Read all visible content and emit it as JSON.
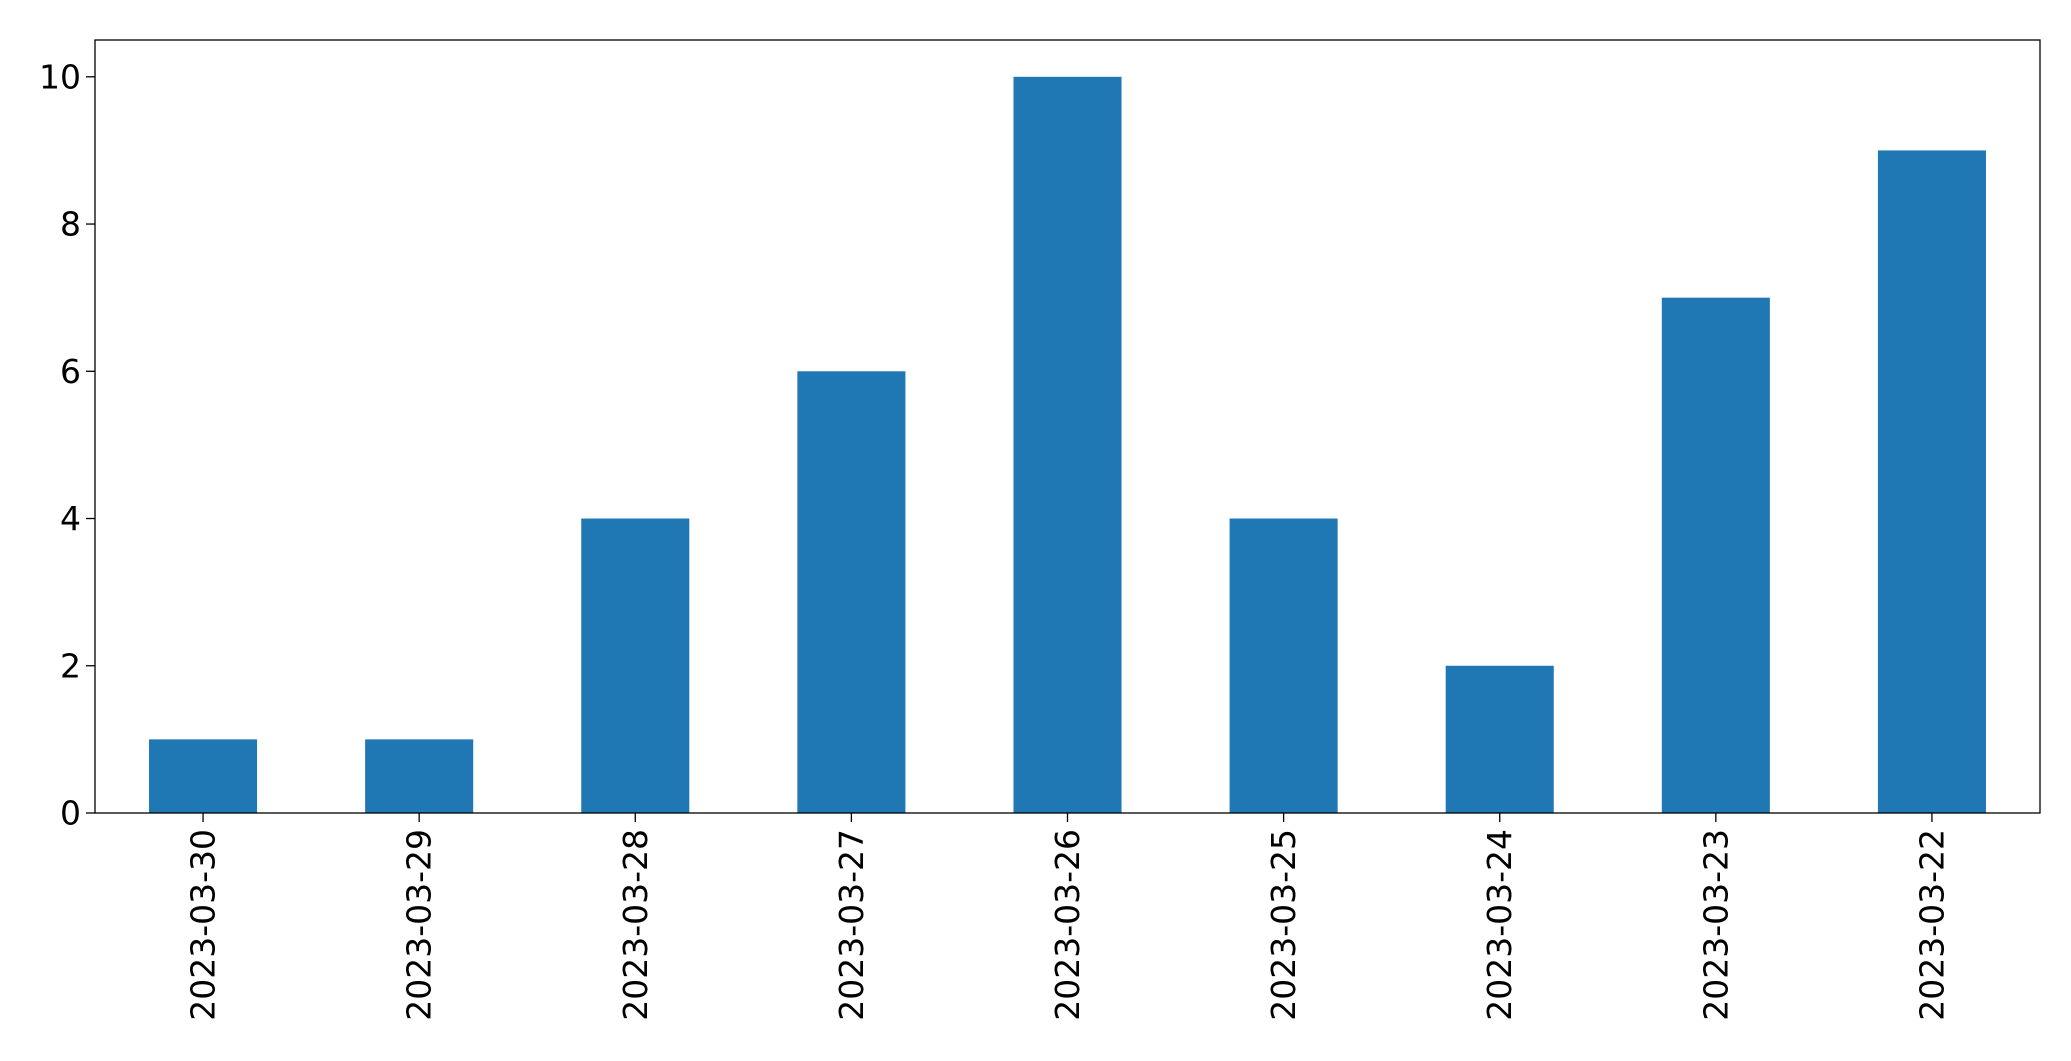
{
  "chart_data": {
    "type": "bar",
    "categories": [
      "2023-03-30",
      "2023-03-29",
      "2023-03-28",
      "2023-03-27",
      "2023-03-26",
      "2023-03-25",
      "2023-03-24",
      "2023-03-23",
      "2023-03-22"
    ],
    "values": [
      1,
      1,
      4,
      6,
      10,
      4,
      2,
      7,
      9
    ],
    "title": "",
    "xlabel": "",
    "ylabel": "",
    "ylim": [
      0,
      10.5
    ],
    "yticks": [
      0,
      2,
      4,
      6,
      8,
      10
    ],
    "grid": false,
    "bar_color": "#1f77b4"
  }
}
